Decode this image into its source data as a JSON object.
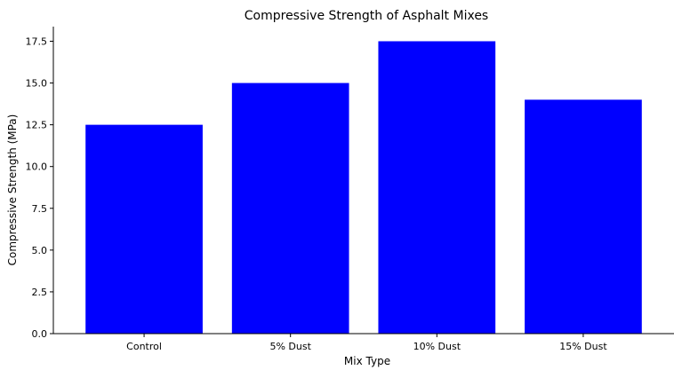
{
  "chart_data": {
    "type": "bar",
    "title": "Compressive Strength of Asphalt Mixes",
    "xlabel": "Mix Type",
    "ylabel": "Compressive Strength (MPa)",
    "categories": [
      "Control",
      "5% Dust",
      "10% Dust",
      "15% Dust"
    ],
    "values": [
      12.5,
      15.0,
      17.5,
      14.0
    ],
    "ylim": [
      0,
      18.375
    ],
    "yticks": [
      "0.0",
      "2.5",
      "5.0",
      "7.5",
      "10.0",
      "12.5",
      "15.0",
      "17.5"
    ],
    "bar_color": "#0000ff",
    "grid": false,
    "legend": "none"
  }
}
